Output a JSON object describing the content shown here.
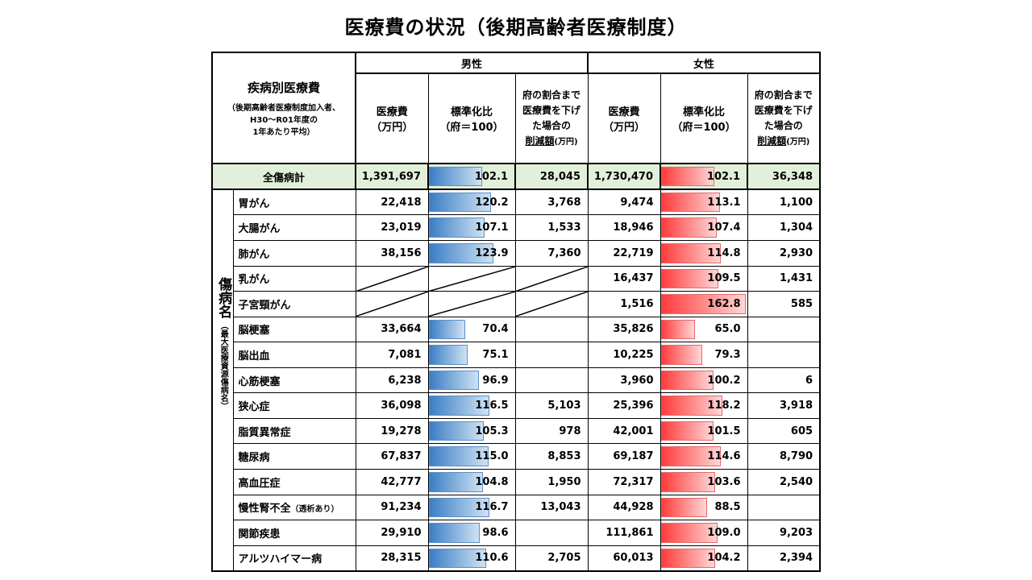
{
  "title": "医療費の状況（後期高齢者医療制度）",
  "header": {
    "category_title": "疾病別医療費",
    "category_note_1": "（後期高齢者医療制度加入者、",
    "category_note_2": "H30～R01年度の",
    "category_note_3": "1年あたり平均）",
    "male": "男性",
    "female": "女性",
    "cost_1": "医療費",
    "cost_2": "（万円）",
    "std_1": "標準化比",
    "std_2": "（府＝100）",
    "red_1": "府の割合まで",
    "red_2": "医療費を下げ",
    "red_3": "た場合の",
    "red_4": "削減額",
    "red_unit": "(万円)"
  },
  "total": {
    "label": "全傷病計",
    "male_cost": "1,391,697",
    "male_ratio": "102.1",
    "male_ratio_value": 102.1,
    "male_red": "28,045",
    "female_cost": "1,730,470",
    "female_ratio": "102.1",
    "female_ratio_value": 102.1,
    "female_red": "36,348"
  },
  "side_label_main": "傷病名",
  "side_label_sub": "（最大医療資源傷病名）",
  "rows": [
    {
      "name": "胃がん",
      "m_cost": "22,418",
      "m_ratio": "120.2",
      "m_val": 120.2,
      "m_red": "3,768",
      "f_cost": "9,474",
      "f_ratio": "113.1",
      "f_val": 113.1,
      "f_red": "1,100"
    },
    {
      "name": "大腸がん",
      "m_cost": "23,019",
      "m_ratio": "107.1",
      "m_val": 107.1,
      "m_red": "1,533",
      "f_cost": "18,946",
      "f_ratio": "107.4",
      "f_val": 107.4,
      "f_red": "1,304"
    },
    {
      "name": "肺がん",
      "m_cost": "38,156",
      "m_ratio": "123.9",
      "m_val": 123.9,
      "m_red": "7,360",
      "f_cost": "22,719",
      "f_ratio": "114.8",
      "f_val": 114.8,
      "f_red": "2,930"
    },
    {
      "name": "乳がん",
      "m_cost": "",
      "m_ratio": "",
      "m_val": null,
      "m_red": "",
      "f_cost": "16,437",
      "f_ratio": "109.5",
      "f_val": 109.5,
      "f_red": "1,431"
    },
    {
      "name": "子宮頸がん",
      "m_cost": "",
      "m_ratio": "",
      "m_val": null,
      "m_red": "",
      "f_cost": "1,516",
      "f_ratio": "162.8",
      "f_val": 162.8,
      "f_red": "585"
    },
    {
      "name": "脳梗塞",
      "m_cost": "33,664",
      "m_ratio": "70.4",
      "m_val": 70.4,
      "m_red": "",
      "f_cost": "35,826",
      "f_ratio": "65.0",
      "f_val": 65.0,
      "f_red": ""
    },
    {
      "name": "脳出血",
      "m_cost": "7,081",
      "m_ratio": "75.1",
      "m_val": 75.1,
      "m_red": "",
      "f_cost": "10,225",
      "f_ratio": "79.3",
      "f_val": 79.3,
      "f_red": ""
    },
    {
      "name": "心筋梗塞",
      "m_cost": "6,238",
      "m_ratio": "96.9",
      "m_val": 96.9,
      "m_red": "",
      "f_cost": "3,960",
      "f_ratio": "100.2",
      "f_val": 100.2,
      "f_red": "6"
    },
    {
      "name": "狭心症",
      "m_cost": "36,098",
      "m_ratio": "116.5",
      "m_val": 116.5,
      "m_red": "5,103",
      "f_cost": "25,396",
      "f_ratio": "118.2",
      "f_val": 118.2,
      "f_red": "3,918"
    },
    {
      "name": "脂質異常症",
      "m_cost": "19,278",
      "m_ratio": "105.3",
      "m_val": 105.3,
      "m_red": "978",
      "f_cost": "42,001",
      "f_ratio": "101.5",
      "f_val": 101.5,
      "f_red": "605"
    },
    {
      "name": "糖尿病",
      "m_cost": "67,837",
      "m_ratio": "115.0",
      "m_val": 115.0,
      "m_red": "8,853",
      "f_cost": "69,187",
      "f_ratio": "114.6",
      "f_val": 114.6,
      "f_red": "8,790"
    },
    {
      "name": "高血圧症",
      "m_cost": "42,777",
      "m_ratio": "104.8",
      "m_val": 104.8,
      "m_red": "1,950",
      "f_cost": "72,317",
      "f_ratio": "103.6",
      "f_val": 103.6,
      "f_red": "2,540"
    },
    {
      "name": "慢性腎不全",
      "name_note": "（透析あり）",
      "m_cost": "91,234",
      "m_ratio": "116.7",
      "m_val": 116.7,
      "m_red": "13,043",
      "f_cost": "44,928",
      "f_ratio": "88.5",
      "f_val": 88.5,
      "f_red": ""
    },
    {
      "name": "関節疾患",
      "m_cost": "29,910",
      "m_ratio": "98.6",
      "m_val": 98.6,
      "m_red": "",
      "f_cost": "111,861",
      "f_ratio": "109.0",
      "f_val": 109.0,
      "f_red": "9,203"
    },
    {
      "name": "アルツハイマー病",
      "m_cost": "28,315",
      "m_ratio": "110.6",
      "m_val": 110.6,
      "m_red": "2,705",
      "f_cost": "60,013",
      "f_ratio": "104.2",
      "f_val": 104.2,
      "f_red": "2,394"
    }
  ],
  "colors": {
    "male_bar": "#3b7ec6",
    "female_bar": "#ff3b3b",
    "total_bg": "#e2efda"
  }
}
